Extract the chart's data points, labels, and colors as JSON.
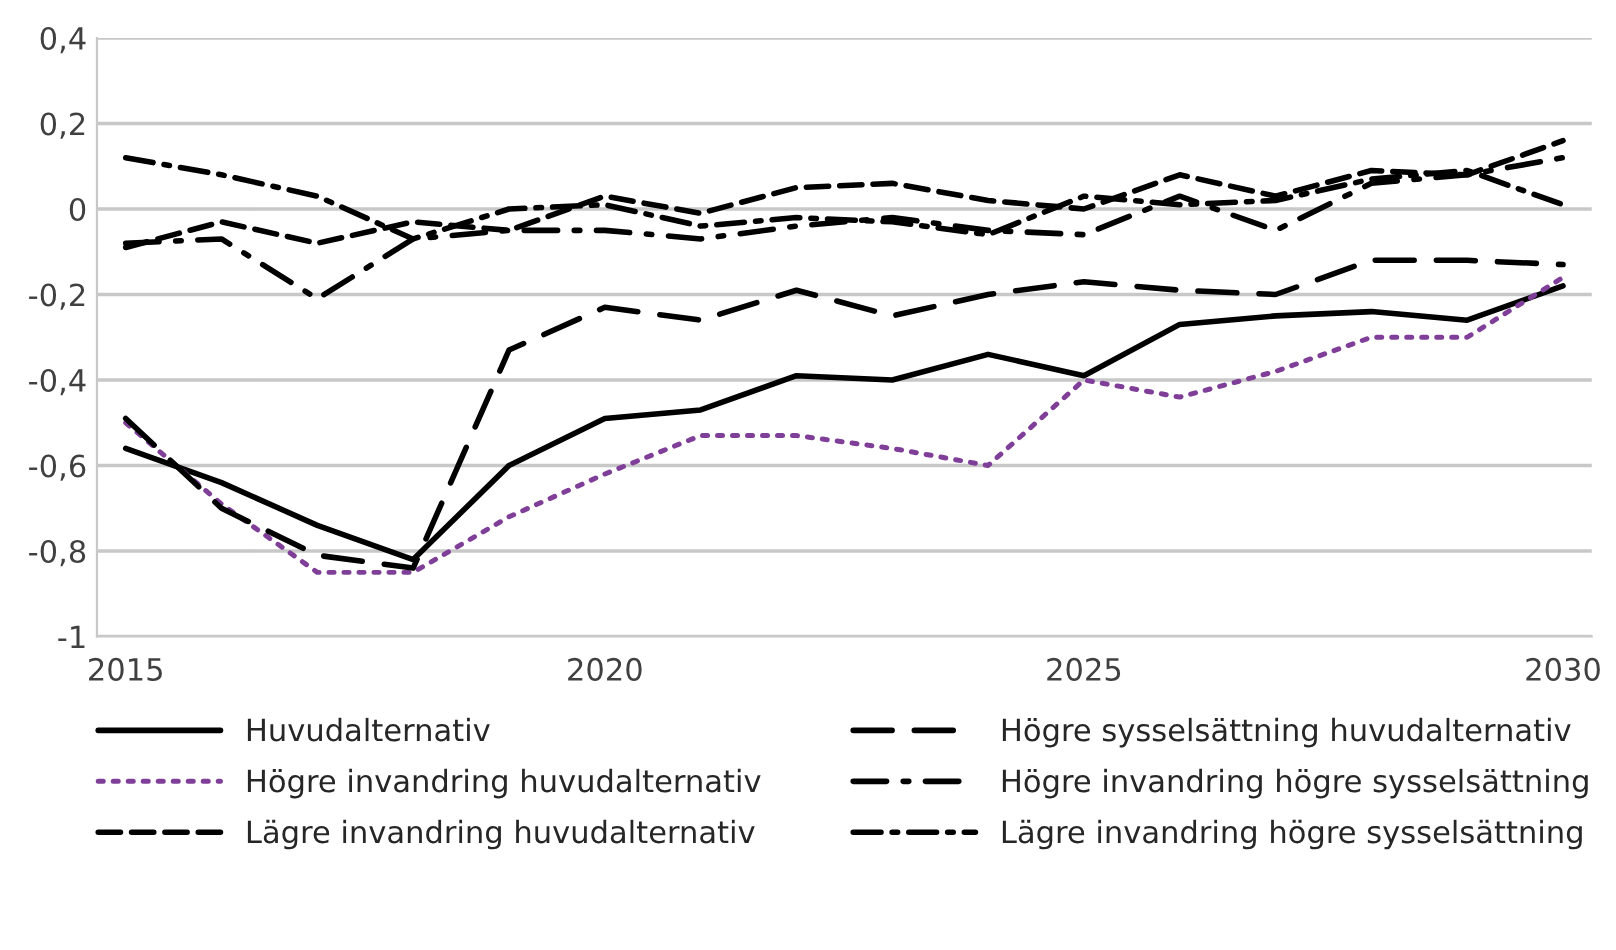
{
  "chart_data": {
    "type": "line",
    "categories": [
      "2015",
      null,
      null,
      null,
      null,
      "2020",
      null,
      null,
      null,
      null,
      "2025",
      null,
      null,
      null,
      null,
      "2030"
    ],
    "ylim": [
      -1,
      0.4
    ],
    "yticks": [
      {
        "value": -1,
        "label": "-1"
      },
      {
        "value": -0.8,
        "label": "-0,8"
      },
      {
        "value": -0.6,
        "label": "-0,6"
      },
      {
        "value": -0.4,
        "label": "-0,4"
      },
      {
        "value": -0.2,
        "label": "-0,2"
      },
      {
        "value": 0,
        "label": "0"
      },
      {
        "value": 0.2,
        "label": "0,2"
      },
      {
        "value": 0.4,
        "label": "0,4"
      }
    ],
    "grid": "y",
    "legend": "bottom",
    "marker": "none",
    "series": [
      {
        "name": "Huvudalternativ",
        "color": "#000000",
        "line_style": "solid",
        "values": [
          -0.56,
          -0.64,
          -0.74,
          -0.82,
          -0.6,
          -0.49,
          -0.47,
          -0.39,
          -0.4,
          -0.34,
          -0.39,
          -0.27,
          -0.25,
          -0.24,
          -0.26,
          -0.18
        ]
      },
      {
        "name": "Högre invandring huvudalternativ",
        "color": "#7f3f98",
        "line_style": "dotted",
        "values": [
          -0.5,
          -0.69,
          -0.85,
          -0.85,
          -0.72,
          -0.62,
          -0.53,
          -0.53,
          -0.56,
          -0.6,
          -0.4,
          -0.44,
          -0.38,
          -0.3,
          -0.3,
          -0.16
        ]
      },
      {
        "name": "Lägre invandring huvudalternativ",
        "color": "#000000",
        "line_style": "dashed",
        "values": [
          -0.09,
          -0.03,
          -0.08,
          -0.03,
          -0.05,
          0.03,
          -0.01,
          0.05,
          0.06,
          0.02,
          0.0,
          0.08,
          0.03,
          0.09,
          0.08,
          0.16
        ]
      },
      {
        "name": "Högre sysselsättning huvudalternativ",
        "color": "#000000",
        "line_style": "longdash",
        "values": [
          -0.49,
          -0.7,
          -0.81,
          -0.84,
          -0.33,
          -0.23,
          -0.26,
          -0.19,
          -0.25,
          -0.2,
          -0.17,
          -0.19,
          -0.2,
          -0.12,
          -0.12,
          -0.13
        ]
      },
      {
        "name": "Högre invandring högre sysselsättning",
        "color": "#000000",
        "line_style": "dashdot",
        "values": [
          -0.08,
          -0.07,
          -0.21,
          -0.07,
          -0.05,
          -0.05,
          -0.07,
          -0.04,
          -0.02,
          -0.05,
          -0.06,
          0.03,
          -0.05,
          0.06,
          0.08,
          0.12
        ]
      },
      {
        "name": "Lägre invandring högre sysselsättning",
        "color": "#000000",
        "line_style": "longdashdot",
        "values": [
          0.12,
          0.08,
          0.03,
          -0.07,
          0.0,
          0.01,
          -0.04,
          -0.02,
          -0.03,
          -0.06,
          0.03,
          0.01,
          0.02,
          0.07,
          0.09,
          0.01
        ]
      }
    ]
  }
}
